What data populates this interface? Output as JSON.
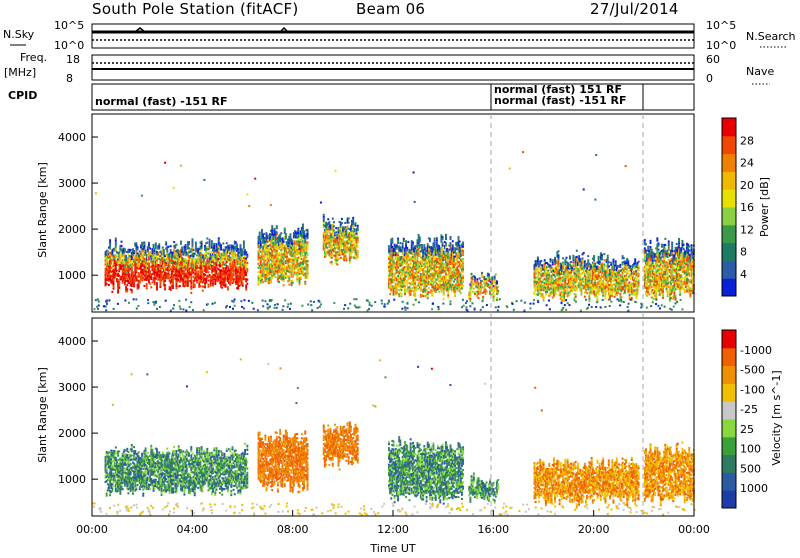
{
  "header": {
    "station": "South Pole Station (fitACF)",
    "beam": "Beam 06",
    "date": "27/Jul/2014"
  },
  "side_labels": {
    "nsky": "N.Sky",
    "nsearch": "N.Search",
    "freq": "Freq.",
    "freq_unit": "[MHz]",
    "nave": "Nave",
    "cpid": "CPID",
    "nsky_ticks": [
      "10^5",
      "10^0"
    ],
    "nsearch_ticks": [
      "10^5",
      "10^0"
    ],
    "freq_ticks": [
      "18",
      "8"
    ],
    "nave_ticks": [
      "60",
      "0"
    ]
  },
  "cpid_labels": [
    "normal (fast) -151 RF",
    "normal (fast) 151 RF",
    "normal (fast) -151 RF"
  ],
  "chart_data": [
    {
      "type": "heatmap",
      "title": "",
      "ylabel": "Slant Range [km]",
      "xlabel": "",
      "ylim": [
        200,
        4500
      ],
      "yticks": [
        "1000",
        "2000",
        "3000",
        "4000"
      ],
      "colorbar": {
        "label": "Power [dB]",
        "ticks": [
          "4",
          "8",
          "12",
          "16",
          "20",
          "24",
          "28"
        ],
        "colors": [
          "#0a20d8",
          "#2a5ca8",
          "#1e7a62",
          "#3a9a4a",
          "#8ad040",
          "#e8e000",
          "#f0b800",
          "#f08000",
          "#f04800",
          "#e80000"
        ]
      }
    },
    {
      "type": "heatmap",
      "title": "",
      "ylabel": "Slant Range [km]",
      "xlabel": "Time UT",
      "ylim": [
        200,
        4500
      ],
      "yticks": [
        "1000",
        "2000",
        "3000",
        "4000"
      ],
      "xticks": [
        "00:00",
        "04:00",
        "08:00",
        "12:00",
        "16:00",
        "20:00",
        "00:00"
      ],
      "colorbar": {
        "label": "Velocity [m s^-1]",
        "ticks": [
          "1000",
          "500",
          "100",
          "25",
          "-25",
          "-100",
          "-500",
          "-1000"
        ],
        "colors": [
          "#1e3ca8",
          "#2a5aa0",
          "#2f7a62",
          "#3aa03a",
          "#8ad840",
          "#c8c8c8",
          "#f0c000",
          "#f09000",
          "#f06000",
          "#e80000"
        ]
      }
    }
  ]
}
